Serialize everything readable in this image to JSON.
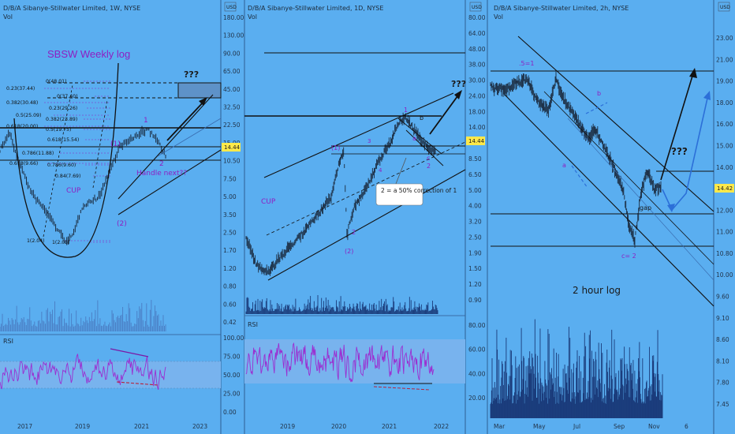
{
  "chart_data": [
    {
      "type": "line",
      "title": "D/B/A Sibanye-Stillwater Limited, 1W, NYSE",
      "volume_label": "Vol",
      "label": "SBSW Weekly log",
      "scale": "log",
      "price_ticks": [
        180.0,
        130.0,
        90.0,
        65.0,
        45.0,
        32.5,
        22.5,
        15.0,
        10.5,
        7.5,
        5.0,
        3.5,
        2.5,
        1.7,
        1.2,
        0.8,
        0.6,
        0.42
      ],
      "price_badge": "14.44",
      "time_ticks": [
        "2017",
        "2019",
        "2021",
        "2023"
      ],
      "fib_levels": [
        {
          "label": "0(48.01)",
          "value": 48.01
        },
        {
          "label": "0.23(37.44)",
          "value": 37.44
        },
        {
          "label": "0(37.40)",
          "value": 37.4
        },
        {
          "label": "0.382(30.48)",
          "value": 30.48
        },
        {
          "label": "0.23(29.26)",
          "value": 29.26
        },
        {
          "label": "0.5(25.09)",
          "value": 25.09
        },
        {
          "label": "0.382(23.89)",
          "value": 23.89
        },
        {
          "label": "0.618(20.00)",
          "value": 20.0
        },
        {
          "label": "0.5(19.75)",
          "value": 19.75
        },
        {
          "label": "0.618(15.54)",
          "value": 15.54
        },
        {
          "label": "0.786(11.88)",
          "value": 11.88
        },
        {
          "label": "0.618(9.66)",
          "value": 9.66
        },
        {
          "label": "0.786(9.60)",
          "value": 9.6
        },
        {
          "label": "0.84(7.69)",
          "value": 7.69
        },
        {
          "label": "1(2.04)",
          "value": 2.04
        },
        {
          "label": "1(2.03)",
          "value": 2.03
        }
      ],
      "annotations": [
        "???",
        "1",
        "(1)",
        "2",
        "(2)",
        "CUP",
        "Handle next??"
      ],
      "rsi": {
        "label": "RSI",
        "ticks": [
          100.0,
          75.0,
          50.0,
          25.0,
          0.0
        ]
      }
    },
    {
      "type": "line",
      "title": "D/B/A Sibanye-Stillwater Limited, 1D, NYSE",
      "volume_label": "Vol",
      "scale": "log",
      "price_ticks": [
        80.0,
        64.0,
        48.0,
        38.0,
        30.0,
        24.0,
        18.0,
        14.0,
        11.0,
        8.5,
        6.5,
        5.0,
        4.0,
        3.2,
        2.5,
        1.9,
        1.5,
        1.2,
        0.9
      ],
      "price_badge": "14.44",
      "time_ticks": [
        "2019",
        "2020",
        "2021",
        "2022"
      ],
      "annotations": [
        "???",
        "1",
        "b",
        "(1)",
        "a",
        "c",
        "2",
        "(2)",
        "3",
        "4",
        "CUP",
        "2 = a 50% correction of 1"
      ],
      "rsi": {
        "label": "RSI",
        "ticks": [
          80.0,
          60.0,
          40.0,
          20.0
        ]
      }
    },
    {
      "type": "line",
      "title": "D/B/A Sibanye-Stillwater Limited, 2h, NYSE",
      "volume_label": "Vol",
      "label": "2 hour log",
      "scale": "log",
      "price_ticks": [
        23.0,
        21.0,
        19.0,
        18.0,
        16.0,
        15.0,
        14.0,
        13.0,
        12.0,
        11.0,
        10.8,
        10.0,
        9.6,
        9.1,
        8.6,
        8.1,
        7.8,
        7.45
      ],
      "price_badge": "14.42",
      "time_ticks": [
        "Mar",
        "May",
        "Jul",
        "Sep",
        "Nov",
        "6"
      ],
      "levels": [
        20.7,
        15.2,
        13.4,
        12.05
      ],
      "annotations": [
        ".5=1",
        "b",
        "a",
        "c= 2",
        "gap",
        "???"
      ]
    }
  ],
  "colors": {
    "background": "#5aaef0",
    "candles": "#1b2b3f",
    "fib_purple": "#8e1ec2",
    "rsi_line": "#9b2fd1",
    "rsi_band": "#7ab4f0",
    "volume": "#1a3b7a",
    "arrow_blue": "#2c6fd8"
  }
}
